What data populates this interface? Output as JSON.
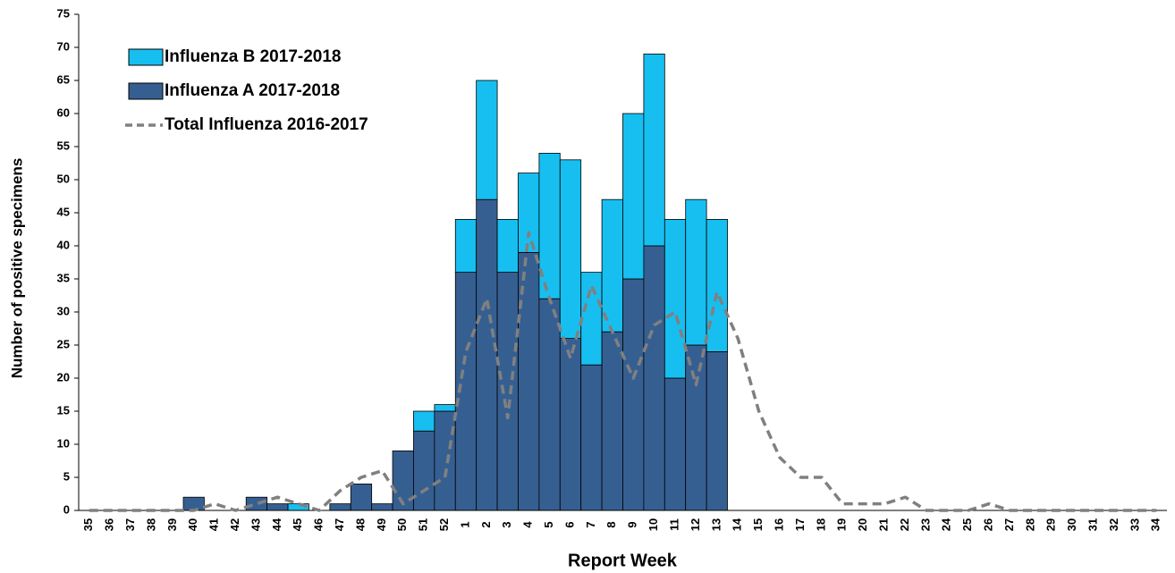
{
  "chart_data": {
    "type": "stacked-bar-line",
    "x_label": "Report Week",
    "y_label": "Number of positive specimens",
    "categories": [
      "35",
      "36",
      "37",
      "38",
      "39",
      "40",
      "41",
      "42",
      "43",
      "44",
      "45",
      "46",
      "47",
      "48",
      "49",
      "50",
      "51",
      "52",
      "1",
      "2",
      "3",
      "4",
      "5",
      "6",
      "7",
      "8",
      "9",
      "10",
      "11",
      "12",
      "13",
      "14",
      "15",
      "16",
      "17",
      "18",
      "19",
      "20",
      "21",
      "22",
      "23",
      "24",
      "25",
      "26",
      "27",
      "28",
      "29",
      "30",
      "31",
      "32",
      "33",
      "34"
    ],
    "series": [
      {
        "name": "Influenza A 2017-2018",
        "color": "#365f91",
        "kind": "bar",
        "values": [
          0,
          0,
          0,
          0,
          0,
          2,
          0,
          0,
          2,
          1,
          0,
          0,
          1,
          4,
          1,
          9,
          12,
          15,
          36,
          47,
          36,
          39,
          32,
          26,
          22,
          27,
          35,
          40,
          20,
          25,
          24,
          null,
          null,
          null,
          null,
          null,
          null,
          null,
          null,
          null,
          null,
          null,
          null,
          null,
          null,
          null,
          null,
          null,
          null,
          null,
          null,
          null
        ]
      },
      {
        "name": "Influenza B 2017-2018",
        "color": "#17bff0",
        "kind": "bar",
        "values": [
          0,
          0,
          0,
          0,
          0,
          0,
          0,
          0,
          0,
          0,
          1,
          0,
          0,
          0,
          0,
          0,
          3,
          1,
          8,
          18,
          8,
          12,
          22,
          27,
          14,
          20,
          25,
          29,
          24,
          22,
          20,
          null,
          null,
          null,
          null,
          null,
          null,
          null,
          null,
          null,
          null,
          null,
          null,
          null,
          null,
          null,
          null,
          null,
          null,
          null,
          null,
          null
        ]
      },
      {
        "name": "Total Influenza 2016-2017",
        "color": "#808080",
        "kind": "line",
        "values": [
          0,
          0,
          0,
          0,
          0,
          0,
          1,
          0,
          1,
          2,
          1,
          0,
          3,
          5,
          6,
          1,
          3,
          5,
          24,
          32,
          14,
          42,
          32,
          23,
          34,
          27,
          20,
          28,
          30,
          19,
          33,
          26,
          15,
          8,
          5,
          5,
          1,
          1,
          1,
          2,
          0,
          0,
          0,
          1,
          0,
          0,
          0,
          0,
          0,
          0,
          0,
          0
        ]
      }
    ],
    "legend_order": [
      1,
      0,
      2
    ],
    "legend": "upper left",
    "ylim": [
      0,
      75
    ],
    "yticks": [
      0,
      5,
      10,
      15,
      20,
      25,
      30,
      35,
      40,
      45,
      50,
      55,
      60,
      65,
      70,
      75
    ],
    "grid": false
  }
}
